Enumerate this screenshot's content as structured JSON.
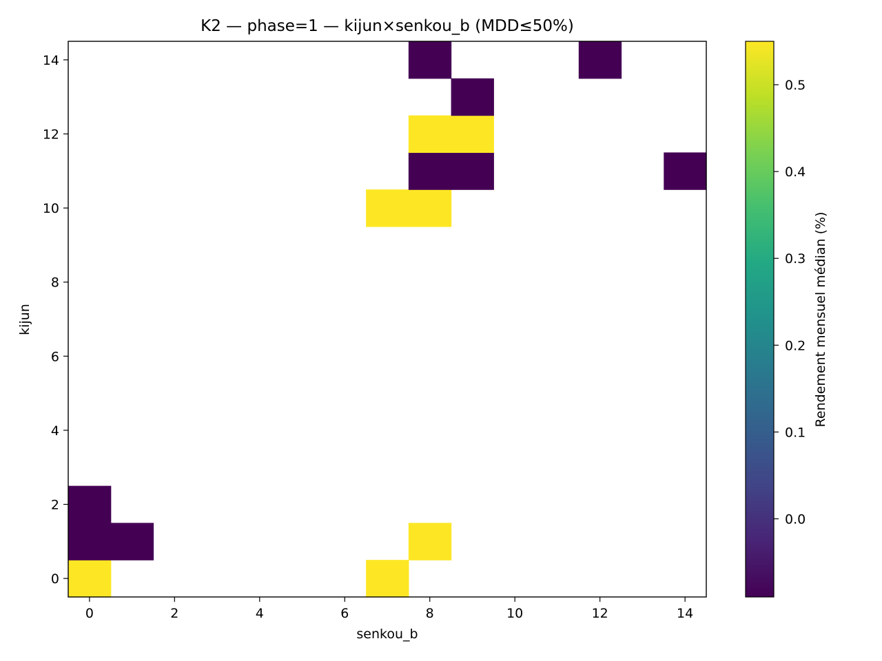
{
  "chart_data": {
    "type": "heatmap",
    "title": "K2 — phase=1 — kijun×senkou_b (MDD≤50%)",
    "xlabel": "senkou_b",
    "ylabel": "kijun",
    "x_ticks": [
      0,
      2,
      4,
      6,
      8,
      10,
      12,
      14
    ],
    "y_ticks": [
      0,
      2,
      4,
      6,
      8,
      10,
      12,
      14
    ],
    "xlim": [
      -0.5,
      14.5
    ],
    "ylim": [
      -0.5,
      14.5
    ],
    "grid": false,
    "cells": [
      {
        "x": 0,
        "y": 0,
        "value": 0.55
      },
      {
        "x": 7,
        "y": 0,
        "value": 0.55
      },
      {
        "x": 0,
        "y": 1,
        "value": -0.09
      },
      {
        "x": 1,
        "y": 1,
        "value": -0.09
      },
      {
        "x": 8,
        "y": 1,
        "value": 0.55
      },
      {
        "x": 0,
        "y": 2,
        "value": -0.09
      },
      {
        "x": 7,
        "y": 10,
        "value": 0.55
      },
      {
        "x": 8,
        "y": 10,
        "value": 0.55
      },
      {
        "x": 8,
        "y": 11,
        "value": -0.09
      },
      {
        "x": 9,
        "y": 11,
        "value": -0.09
      },
      {
        "x": 14,
        "y": 11,
        "value": -0.09
      },
      {
        "x": 8,
        "y": 12,
        "value": 0.55
      },
      {
        "x": 9,
        "y": 12,
        "value": 0.55
      },
      {
        "x": 9,
        "y": 13,
        "value": -0.09
      },
      {
        "x": 8,
        "y": 14,
        "value": -0.09
      },
      {
        "x": 12,
        "y": 14,
        "value": -0.09
      }
    ],
    "colorbar": {
      "label": "Rendement mensuel médian (%)",
      "colormap": "viridis",
      "range": [
        -0.09,
        0.55
      ],
      "ticks": [
        "0.0",
        "0.1",
        "0.2",
        "0.3",
        "0.4",
        "0.5"
      ]
    }
  }
}
